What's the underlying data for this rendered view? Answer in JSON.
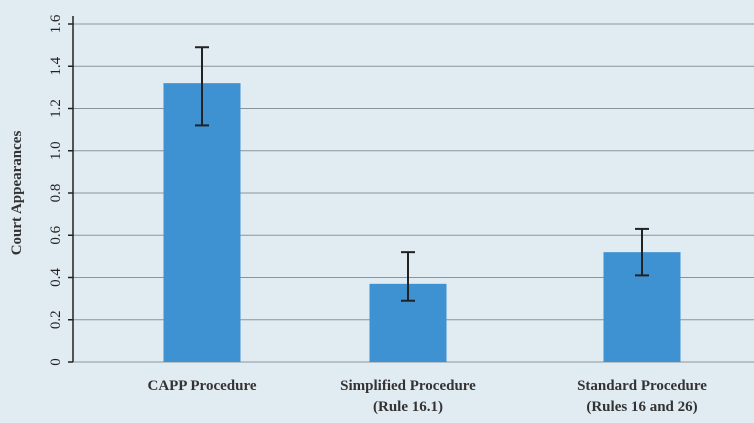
{
  "chart_data": {
    "type": "bar",
    "title": "",
    "xlabel": "",
    "ylabel": "Court Appearances",
    "ylim": [
      0,
      1.6
    ],
    "yticks": [
      "0",
      "0.2",
      "0.4",
      "0.6",
      "0.8",
      "1.0",
      "1.2",
      "1.4",
      "1.6"
    ],
    "ytick_values": [
      0,
      0.2,
      0.4,
      0.6,
      0.8,
      1.0,
      1.2,
      1.4,
      1.6
    ],
    "categories": [
      [
        "CAPP Procedure"
      ],
      [
        "Simplified Procedure",
        "(Rule 16.1)"
      ],
      [
        "Standard Procedure",
        "(Rules 16 and 26)"
      ]
    ],
    "values": [
      1.32,
      0.37,
      0.52
    ],
    "error_low": [
      1.12,
      0.29,
      0.41
    ],
    "error_high": [
      1.49,
      0.52,
      0.63
    ],
    "grid": true,
    "colors": {
      "bar": "#3f92d2",
      "background": "#e1ebf2",
      "grid": "#8a949c",
      "axis": "#222222",
      "error_bar": "#222222"
    }
  }
}
